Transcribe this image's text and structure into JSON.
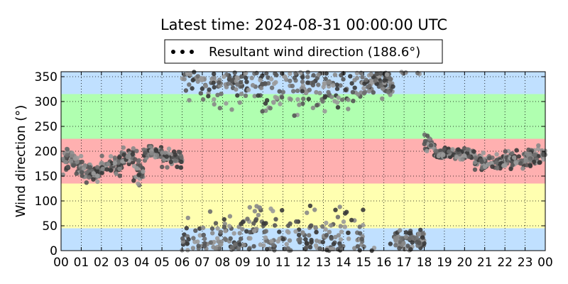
{
  "chart_data": {
    "type": "scatter",
    "title": "Latest time: 2024-08-31 00:00:00 UTC",
    "ylabel": "Wind direction (°)",
    "xlabel": "",
    "xlim": [
      0,
      24
    ],
    "ylim": [
      0,
      360
    ],
    "x_ticks": [
      "00",
      "01",
      "02",
      "03",
      "04",
      "05",
      "06",
      "07",
      "08",
      "09",
      "10",
      "11",
      "12",
      "13",
      "14",
      "15",
      "16",
      "17",
      "18",
      "19",
      "20",
      "21",
      "22",
      "23",
      "00"
    ],
    "y_ticks": [
      0,
      50,
      100,
      150,
      200,
      250,
      300,
      350
    ],
    "grid": true,
    "legend": {
      "placement": "top-center",
      "entries": [
        "Resultant wind direction (188.6°)"
      ]
    },
    "bands": [
      {
        "from": 0,
        "to": 45,
        "color": "#c0e0ff"
      },
      {
        "from": 45,
        "to": 135,
        "color": "#ffffb0"
      },
      {
        "from": 135,
        "to": 225,
        "color": "#ffb0b0"
      },
      {
        "from": 225,
        "to": 315,
        "color": "#b0ffb0"
      },
      {
        "from": 315,
        "to": 360,
        "color": "#c0e0ff"
      }
    ],
    "series": [
      {
        "name": "Resultant wind direction (188.6°)",
        "segments": [
          {
            "x": [
              0.0,
              1.0
            ],
            "center": 180,
            "spread": 18
          },
          {
            "x": [
              1.0,
              2.0
            ],
            "center": 158,
            "spread": 14
          },
          {
            "x": [
              2.0,
              3.0
            ],
            "center": 172,
            "spread": 14
          },
          {
            "x": [
              3.0,
              3.6
            ],
            "center": 190,
            "spread": 12
          },
          {
            "x": [
              3.6,
              4.1
            ],
            "center": 158,
            "spread": 24
          },
          {
            "x": [
              4.1,
              5.0
            ],
            "center": 198,
            "spread": 10
          },
          {
            "x": [
              5.0,
              6.0
            ],
            "center": 185,
            "spread": 12
          },
          {
            "x": [
              6.0,
              9.0
            ],
            "center": 0,
            "spread": 45,
            "wrap": true
          },
          {
            "x": [
              9.0,
              12.5
            ],
            "center": 0,
            "spread": 60,
            "wrap": true
          },
          {
            "x": [
              12.5,
              15.0
            ],
            "center": 0,
            "spread": 50,
            "wrap": true
          },
          {
            "x": [
              15.0,
              16.5
            ],
            "center": 340,
            "spread": 20,
            "wrap": true
          },
          {
            "x": [
              16.5,
              18.0
            ],
            "center": 20,
            "spread": 18,
            "wrap": true
          },
          {
            "x": [
              18.0,
              18.5
            ],
            "center": 215,
            "spread": 15
          },
          {
            "x": [
              18.5,
              20.5
            ],
            "center": 195,
            "spread": 8
          },
          {
            "x": [
              20.5,
              22.0
            ],
            "center": 178,
            "spread": 10
          },
          {
            "x": [
              22.0,
              23.0
            ],
            "center": 182,
            "spread": 12
          },
          {
            "x": [
              23.0,
              24.0
            ],
            "center": 190,
            "spread": 14
          }
        ]
      }
    ]
  }
}
